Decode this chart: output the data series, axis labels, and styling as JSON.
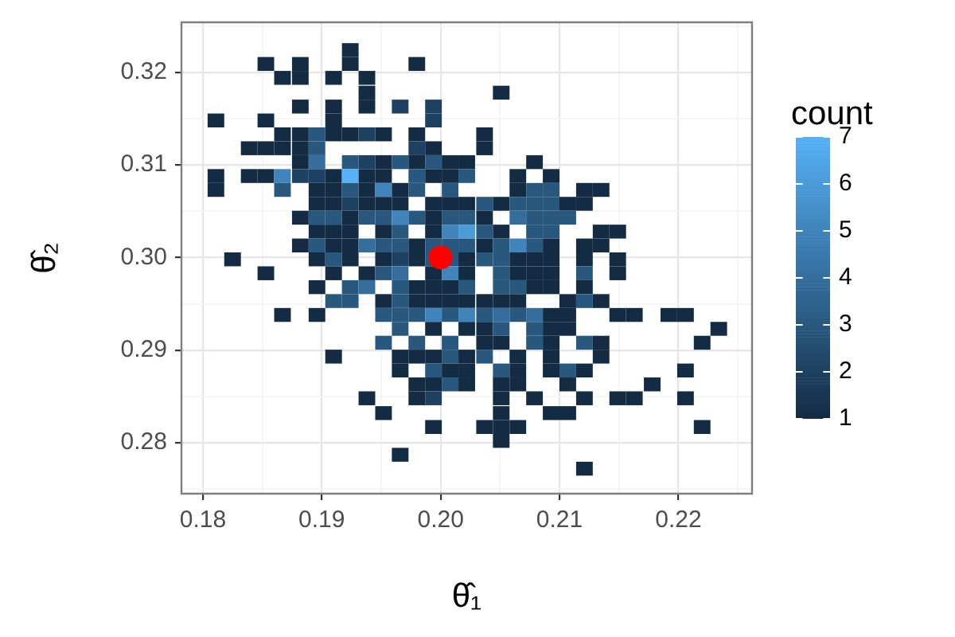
{
  "chart_data": {
    "type": "scatter",
    "xlabel": "θ̂₁",
    "ylabel": "θ̂₂",
    "clabel": "count",
    "clim": [
      1,
      7
    ],
    "cticks": [
      1,
      2,
      3,
      4,
      5,
      6,
      7
    ],
    "xlim": [
      0.1782,
      0.2262
    ],
    "ylim": [
      0.2745,
      0.3254
    ],
    "xticks": [
      0.18,
      {
        "value": 0.185,
        "label": null
      },
      0.19,
      {
        "value": 0.195,
        "label": null
      },
      {
        "value": 0.2,
        "label": "0.20"
      },
      {
        "value": 0.205,
        "label": null
      },
      0.21,
      {
        "value": 0.215,
        "label": null
      },
      0.22,
      {
        "value": 0.225,
        "label": null
      }
    ],
    "yticks": [
      {
        "value": 0.275,
        "label": null
      },
      0.28,
      {
        "value": 0.285,
        "label": null
      },
      0.29,
      {
        "value": 0.295,
        "label": null
      },
      {
        "value": 0.3,
        "label": "0.30"
      },
      {
        "value": 0.305,
        "label": null
      },
      0.31,
      {
        "value": 0.315,
        "label": null
      },
      0.32,
      {
        "value": 0.325,
        "label": null
      }
    ],
    "grid": true,
    "series": [
      {
        "marker": "square",
        "x": [
          0.1924,
          0.1853,
          0.1882,
          0.1924,
          0.198,
          0.1867,
          0.1882,
          0.191,
          0.1938,
          0.1938,
          0.2051,
          0.1882,
          0.191,
          0.1938,
          0.1966,
          0.1994,
          0.1811,
          0.1853,
          0.191,
          0.1994,
          0.1867,
          0.1882,
          0.1896,
          0.191,
          0.1924,
          0.1938,
          0.1952,
          0.198,
          0.2037,
          0.1839,
          0.1853,
          0.1867,
          0.1882,
          0.1896,
          0.198,
          0.1994,
          0.2037,
          0.1882,
          0.1896,
          0.1924,
          0.1938,
          0.1952,
          0.1966,
          0.198,
          0.1994,
          0.2008,
          0.2022,
          0.2079,
          0.1811,
          0.1839,
          0.1853,
          0.1867,
          0.1882,
          0.1896,
          0.191,
          0.1924,
          0.1938,
          0.1952,
          0.198,
          0.1994,
          0.2008,
          0.2022,
          0.2065,
          0.2093,
          0.1811,
          0.1867,
          0.1896,
          0.191,
          0.1924,
          0.1938,
          0.1952,
          0.1966,
          0.198,
          0.2008,
          0.2065,
          0.2079,
          0.2093,
          0.2121,
          0.2135,
          0.1896,
          0.191,
          0.1924,
          0.1938,
          0.1952,
          0.1966,
          0.1994,
          0.2008,
          0.2022,
          0.2037,
          0.2051,
          0.2065,
          0.2079,
          0.2093,
          0.2107,
          0.2121,
          0.1882,
          0.1896,
          0.191,
          0.1924,
          0.1938,
          0.1952,
          0.1966,
          0.198,
          0.1994,
          0.2008,
          0.2022,
          0.2037,
          0.2065,
          0.2079,
          0.2093,
          0.2107,
          0.1896,
          0.191,
          0.1924,
          0.1952,
          0.1966,
          0.1994,
          0.2008,
          0.2022,
          0.2037,
          0.2051,
          0.2079,
          0.2093,
          0.2135,
          0.2149,
          0.1882,
          0.1896,
          0.191,
          0.1924,
          0.1938,
          0.1952,
          0.1966,
          0.198,
          0.1994,
          0.2008,
          0.2022,
          0.2037,
          0.2051,
          0.2065,
          0.2079,
          0.2093,
          0.2121,
          0.2135,
          0.1825,
          0.1896,
          0.191,
          0.1924,
          0.1952,
          0.1966,
          0.198,
          0.1994,
          0.2008,
          0.2022,
          0.2037,
          0.2051,
          0.2065,
          0.2079,
          0.2093,
          0.2121,
          0.2149,
          0.1853,
          0.191,
          0.1938,
          0.1952,
          0.1966,
          0.1994,
          0.2008,
          0.2022,
          0.2051,
          0.2065,
          0.2079,
          0.2093,
          0.2121,
          0.2149,
          0.1896,
          0.1924,
          0.1938,
          0.1966,
          0.198,
          0.1994,
          0.2008,
          0.2022,
          0.2051,
          0.2065,
          0.2079,
          0.2093,
          0.2121,
          0.191,
          0.1924,
          0.1952,
          0.1966,
          0.198,
          0.1994,
          0.2008,
          0.2022,
          0.2037,
          0.2051,
          0.2065,
          0.2107,
          0.2121,
          0.2135,
          0.1867,
          0.1896,
          0.1952,
          0.1966,
          0.198,
          0.1994,
          0.2008,
          0.2022,
          0.2037,
          0.2051,
          0.2065,
          0.2079,
          0.2093,
          0.2107,
          0.2149,
          0.2163,
          0.2192,
          0.2206,
          0.1966,
          0.1994,
          0.2022,
          0.2037,
          0.2051,
          0.2079,
          0.2093,
          0.2107,
          0.2234,
          0.1952,
          0.198,
          0.2008,
          0.2037,
          0.2051,
          0.2079,
          0.2093,
          0.2121,
          0.2135,
          0.222,
          0.191,
          0.1966,
          0.198,
          0.1994,
          0.2008,
          0.2022,
          0.2037,
          0.2065,
          0.2093,
          0.2135,
          0.1966,
          0.1994,
          0.2008,
          0.2022,
          0.2051,
          0.2065,
          0.2093,
          0.2107,
          0.2121,
          0.2206,
          0.198,
          0.1994,
          0.2008,
          0.2022,
          0.2051,
          0.2065,
          0.2107,
          0.2178,
          0.1938,
          0.198,
          0.1994,
          0.2051,
          0.2079,
          0.2121,
          0.2149,
          0.2163,
          0.2206,
          0.1952,
          0.2051,
          0.2093,
          0.2107,
          0.1994,
          0.2037,
          0.2051,
          0.2065,
          0.222,
          0.2051,
          0.1966,
          0.2121
        ],
        "values": [
          0.3224,
          0.3209,
          0.3209,
          0.3209,
          0.3209,
          0.3194,
          0.3194,
          0.3194,
          0.3194,
          0.3178,
          0.3178,
          0.3163,
          0.3163,
          0.3163,
          0.3163,
          0.3163,
          0.3148,
          0.3148,
          0.3148,
          0.3148,
          0.3133,
          0.3133,
          0.3133,
          0.3133,
          0.3133,
          0.3133,
          0.3133,
          0.3133,
          0.3133,
          0.3118,
          0.3118,
          0.3118,
          0.3118,
          0.3118,
          0.3118,
          0.3118,
          0.3118,
          0.3103,
          0.3103,
          0.3103,
          0.3103,
          0.3103,
          0.3103,
          0.3103,
          0.3103,
          0.3103,
          0.3103,
          0.3103,
          0.3088,
          0.3088,
          0.3088,
          0.3088,
          0.3088,
          0.3088,
          0.3088,
          0.3088,
          0.3088,
          0.3088,
          0.3088,
          0.3088,
          0.3088,
          0.3088,
          0.3088,
          0.3088,
          0.3073,
          0.3073,
          0.3073,
          0.3073,
          0.3073,
          0.3073,
          0.3073,
          0.3073,
          0.3073,
          0.3073,
          0.3073,
          0.3073,
          0.3073,
          0.3073,
          0.3073,
          0.3058,
          0.3058,
          0.3058,
          0.3058,
          0.3058,
          0.3058,
          0.3058,
          0.3058,
          0.3058,
          0.3058,
          0.3058,
          0.3058,
          0.3058,
          0.3058,
          0.3058,
          0.3058,
          0.3043,
          0.3043,
          0.3043,
          0.3043,
          0.3043,
          0.3043,
          0.3043,
          0.3043,
          0.3043,
          0.3043,
          0.3043,
          0.3043,
          0.3043,
          0.3043,
          0.3043,
          0.3043,
          0.3028,
          0.3028,
          0.3028,
          0.3028,
          0.3028,
          0.3028,
          0.3028,
          0.3028,
          0.3028,
          0.3028,
          0.3028,
          0.3028,
          0.3028,
          0.3028,
          0.3013,
          0.3013,
          0.3013,
          0.3013,
          0.3013,
          0.3013,
          0.3013,
          0.3013,
          0.3013,
          0.3013,
          0.3013,
          0.3013,
          0.3013,
          0.3013,
          0.3013,
          0.3013,
          0.3013,
          0.3013,
          0.2998,
          0.2998,
          0.2998,
          0.2998,
          0.2998,
          0.2998,
          0.2998,
          0.2998,
          0.2998,
          0.2998,
          0.2998,
          0.2998,
          0.2998,
          0.2998,
          0.2998,
          0.2998,
          0.2998,
          0.2983,
          0.2983,
          0.2983,
          0.2983,
          0.2983,
          0.2983,
          0.2983,
          0.2983,
          0.2983,
          0.2983,
          0.2983,
          0.2983,
          0.2983,
          0.2983,
          0.2968,
          0.2968,
          0.2968,
          0.2968,
          0.2968,
          0.2968,
          0.2968,
          0.2968,
          0.2968,
          0.2968,
          0.2968,
          0.2968,
          0.2968,
          0.2953,
          0.2953,
          0.2953,
          0.2953,
          0.2953,
          0.2953,
          0.2953,
          0.2953,
          0.2953,
          0.2953,
          0.2953,
          0.2953,
          0.2953,
          0.2953,
          0.2938,
          0.2938,
          0.2938,
          0.2938,
          0.2938,
          0.2938,
          0.2938,
          0.2938,
          0.2938,
          0.2938,
          0.2938,
          0.2938,
          0.2938,
          0.2938,
          0.2938,
          0.2938,
          0.2938,
          0.2938,
          0.2923,
          0.2923,
          0.2923,
          0.2923,
          0.2923,
          0.2923,
          0.2923,
          0.2923,
          0.2923,
          0.2908,
          0.2908,
          0.2908,
          0.2908,
          0.2908,
          0.2908,
          0.2908,
          0.2908,
          0.2908,
          0.2908,
          0.2893,
          0.2893,
          0.2893,
          0.2893,
          0.2893,
          0.2893,
          0.2893,
          0.2893,
          0.2893,
          0.2893,
          0.2878,
          0.2878,
          0.2878,
          0.2878,
          0.2878,
          0.2878,
          0.2878,
          0.2878,
          0.2878,
          0.2878,
          0.2863,
          0.2863,
          0.2863,
          0.2863,
          0.2863,
          0.2863,
          0.2863,
          0.2863,
          0.2848,
          0.2848,
          0.2848,
          0.2848,
          0.2848,
          0.2848,
          0.2848,
          0.2848,
          0.2848,
          0.2832,
          0.2832,
          0.2832,
          0.2832,
          0.2817,
          0.2817,
          0.2817,
          0.2817,
          0.2817,
          0.2802,
          0.2787,
          0.2772
        ],
        "cvalues": [
          1,
          1,
          1,
          1,
          1,
          1,
          1,
          1,
          1,
          1,
          1,
          1,
          1,
          1,
          2,
          2,
          1,
          1,
          1,
          2,
          1,
          1,
          3,
          1,
          1,
          2,
          1,
          1,
          1,
          1,
          1,
          1,
          1,
          3,
          2,
          1,
          1,
          1,
          4,
          3,
          2,
          1,
          3,
          1,
          3,
          1,
          1,
          1,
          1,
          1,
          1,
          5,
          2,
          2,
          1,
          7,
          1,
          1,
          3,
          1,
          1,
          3,
          1,
          1,
          1,
          3,
          1,
          1,
          3,
          1,
          5,
          1,
          3,
          3,
          1,
          3,
          3,
          1,
          1,
          1,
          1,
          2,
          1,
          1,
          1,
          1,
          1,
          1,
          3,
          1,
          3,
          3,
          3,
          1,
          1,
          1,
          3,
          3,
          1,
          3,
          3,
          5,
          3,
          1,
          3,
          3,
          1,
          4,
          3,
          3,
          3,
          1,
          1,
          1,
          1,
          3,
          1,
          5,
          6,
          3,
          1,
          3,
          3,
          1,
          1,
          1,
          3,
          1,
          1,
          4,
          3,
          3,
          1,
          3,
          3,
          3,
          1,
          3,
          5,
          3,
          1,
          1,
          1,
          1,
          1,
          3,
          1,
          1,
          2,
          1,
          3,
          3,
          1,
          3,
          3,
          1,
          1,
          1,
          1,
          1,
          1,
          1,
          1,
          3,
          4,
          1,
          5,
          1,
          3,
          1,
          1,
          1,
          3,
          1,
          1,
          3,
          4,
          3,
          1,
          1,
          1,
          3,
          3,
          3,
          1,
          1,
          1,
          3,
          3,
          1,
          3,
          1,
          1,
          1,
          1,
          1,
          1,
          1,
          1,
          3,
          1,
          1,
          1,
          3,
          3,
          3,
          5,
          3,
          5,
          3,
          4,
          3,
          4,
          1,
          1,
          1,
          1,
          1,
          1,
          3,
          1,
          1,
          1,
          3,
          3,
          1,
          1,
          1,
          3,
          3,
          3,
          1,
          1,
          3,
          1,
          3,
          1,
          1,
          1,
          1,
          1,
          1,
          3,
          1,
          3,
          1,
          1,
          1,
          1,
          3,
          1,
          1,
          3,
          1,
          1,
          3,
          1,
          1,
          1,
          1,
          3,
          1,
          1,
          1,
          1,
          1,
          1,
          1,
          2,
          1,
          1,
          1,
          1,
          1,
          1,
          1,
          1,
          1,
          1,
          1,
          1,
          1,
          1,
          1,
          1,
          1,
          1
        ],
        "colors": [
          "#132b43",
          "#132b43",
          "#132b43",
          "#132b43",
          "#132b43",
          "#132b43",
          "#132b43",
          "#132b43",
          "#132b43",
          "#132b43",
          "#132b43",
          "#132b43",
          "#132b43",
          "#132b43",
          "#1e4161",
          "#1e4161",
          "#132b43",
          "#132b43",
          "#132b43",
          "#1e4161",
          "#132b43",
          "#132b43",
          "#29587f",
          "#132b43",
          "#132b43",
          "#1e4161",
          "#132b43",
          "#132b43",
          "#132b43",
          "#132b43",
          "#132b43",
          "#132b43",
          "#132b43",
          "#29587f",
          "#1e4161",
          "#132b43",
          "#132b43",
          "#132b43",
          "#356e9d",
          "#29587f",
          "#1e4161",
          "#132b43",
          "#29587f",
          "#132b43",
          "#29587f",
          "#132b43",
          "#132b43",
          "#132b43",
          "#132b43",
          "#132b43",
          "#132b43",
          "#4084bb",
          "#1e4161",
          "#1e4161",
          "#132b43",
          "#56b1f7",
          "#132b43",
          "#132b43",
          "#29587f",
          "#132b43",
          "#132b43",
          "#29587f",
          "#132b43",
          "#132b43",
          "#132b43",
          "#29587f",
          "#132b43",
          "#132b43",
          "#29587f",
          "#132b43",
          "#4084bb",
          "#132b43",
          "#29587f",
          "#29587f",
          "#132b43",
          "#29587f",
          "#29587f",
          "#132b43",
          "#132b43",
          "#132b43",
          "#132b43",
          "#1e4161",
          "#132b43",
          "#132b43",
          "#132b43",
          "#132b43",
          "#132b43",
          "#132b43",
          "#29587f",
          "#132b43",
          "#29587f",
          "#29587f",
          "#29587f",
          "#132b43",
          "#132b43",
          "#132b43",
          "#29587f",
          "#29587f",
          "#132b43",
          "#29587f",
          "#29587f",
          "#4084bb",
          "#29587f",
          "#132b43",
          "#29587f",
          "#29587f",
          "#132b43",
          "#356e9d",
          "#29587f",
          "#29587f",
          "#29587f",
          "#132b43",
          "#132b43",
          "#132b43",
          "#132b43",
          "#29587f",
          "#132b43",
          "#4084bb",
          "#4b9bd9",
          "#29587f",
          "#132b43",
          "#29587f",
          "#29587f",
          "#132b43",
          "#132b43",
          "#132b43",
          "#29587f",
          "#132b43",
          "#132b43",
          "#356e9d",
          "#29587f",
          "#29587f",
          "#132b43",
          "#29587f",
          "#29587f",
          "#29587f",
          "#132b43",
          "#29587f",
          "#4084bb",
          "#29587f",
          "#132b43",
          "#132b43",
          "#132b43",
          "#132b43",
          "#132b43",
          "#29587f",
          "#132b43",
          "#132b43",
          "#1e4161",
          "#132b43",
          "#29587f",
          "#29587f",
          "#132b43",
          "#29587f",
          "#29587f",
          "#132b43",
          "#132b43",
          "#132b43",
          "#132b43",
          "#132b43",
          "#132b43",
          "#132b43",
          "#132b43",
          "#29587f",
          "#356e9d",
          "#132b43",
          "#4084bb",
          "#132b43",
          "#29587f",
          "#132b43",
          "#132b43",
          "#132b43",
          "#29587f",
          "#132b43",
          "#132b43",
          "#29587f",
          "#356e9d",
          "#29587f",
          "#132b43",
          "#132b43",
          "#132b43",
          "#29587f",
          "#29587f",
          "#29587f",
          "#132b43",
          "#132b43",
          "#132b43",
          "#29587f",
          "#29587f",
          "#132b43",
          "#29587f",
          "#132b43",
          "#132b43",
          "#132b43",
          "#132b43",
          "#132b43",
          "#132b43",
          "#132b43",
          "#132b43",
          "#29587f",
          "#132b43",
          "#132b43",
          "#132b43",
          "#29587f",
          "#29587f",
          "#29587f",
          "#4084bb",
          "#29587f",
          "#4084bb",
          "#29587f",
          "#356e9d",
          "#29587f",
          "#356e9d",
          "#132b43",
          "#132b43",
          "#132b43",
          "#132b43",
          "#132b43",
          "#132b43",
          "#29587f",
          "#132b43",
          "#132b43",
          "#132b43",
          "#29587f",
          "#29587f",
          "#132b43",
          "#132b43",
          "#132b43",
          "#29587f",
          "#29587f",
          "#29587f",
          "#132b43",
          "#132b43",
          "#29587f",
          "#132b43",
          "#29587f",
          "#132b43",
          "#132b43",
          "#132b43",
          "#132b43",
          "#132b43",
          "#132b43",
          "#29587f",
          "#132b43",
          "#29587f",
          "#132b43",
          "#132b43",
          "#132b43",
          "#132b43",
          "#29587f",
          "#132b43",
          "#132b43",
          "#29587f",
          "#132b43",
          "#132b43",
          "#29587f",
          "#132b43",
          "#132b43",
          "#132b43",
          "#132b43",
          "#29587f",
          "#132b43",
          "#132b43",
          "#132b43",
          "#132b43",
          "#132b43",
          "#132b43",
          "#132b43",
          "#1e4161",
          "#132b43",
          "#132b43",
          "#132b43",
          "#132b43",
          "#132b43",
          "#132b43",
          "#132b43",
          "#132b43",
          "#132b43",
          "#132b43",
          "#132b43",
          "#132b43",
          "#132b43",
          "#132b43",
          "#132b43",
          "#132b43",
          "#132b43",
          "#132b43"
        ]
      },
      {
        "marker": "circle",
        "color": "#ff0000",
        "x": [
          0.2
        ],
        "values": [
          0.3
        ]
      }
    ]
  }
}
